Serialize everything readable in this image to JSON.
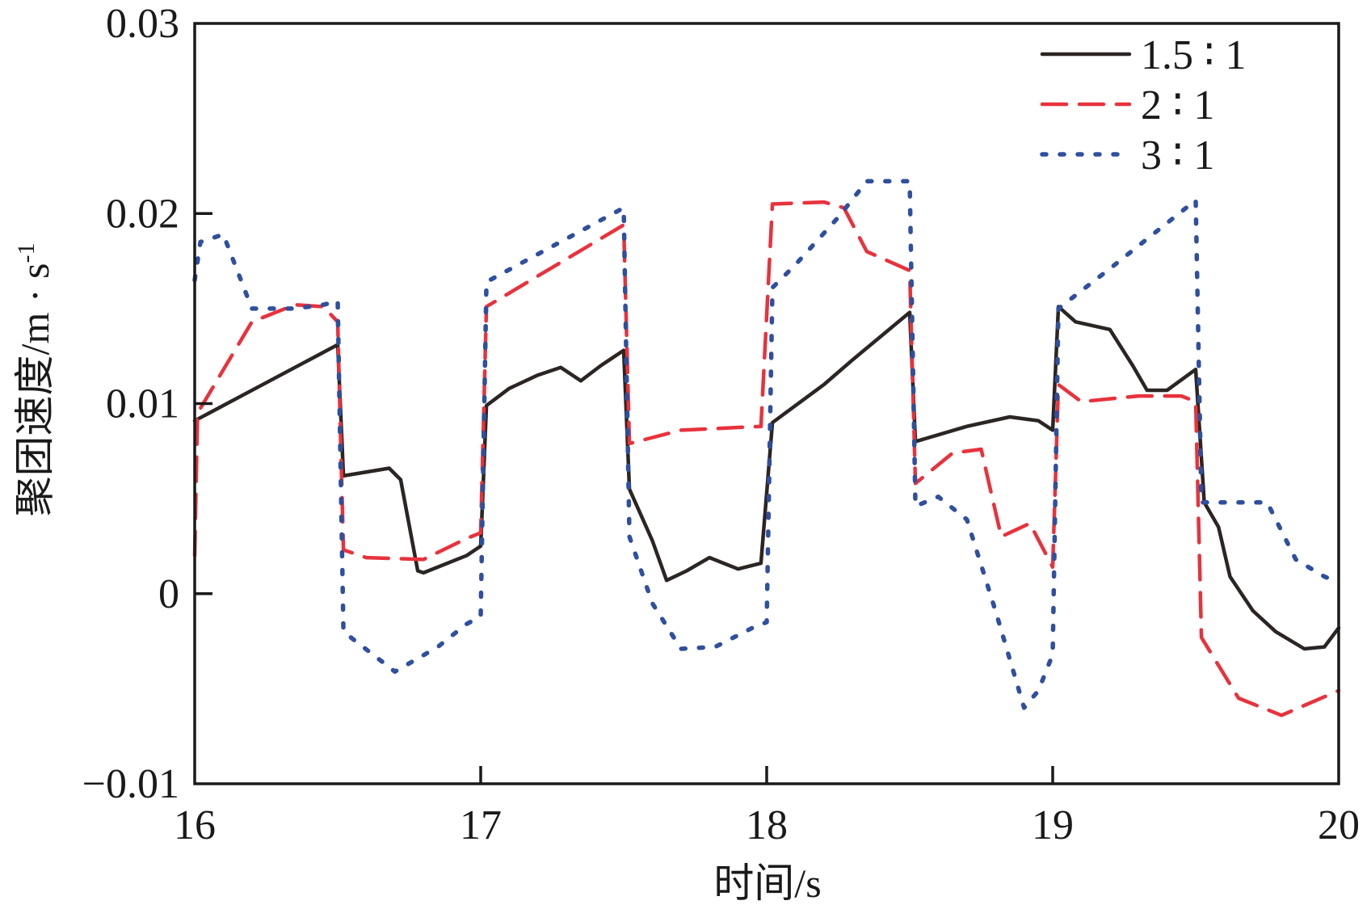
{
  "chart_data": {
    "type": "line",
    "title": "",
    "xlabel": "时间/s",
    "ylabel": "聚团速度/m · s",
    "ylabel_sup": "-1",
    "xlim": [
      16,
      20
    ],
    "ylim": [
      -0.01,
      0.03
    ],
    "xticks": [
      16,
      17,
      18,
      19,
      20
    ],
    "xtick_labels": [
      "16",
      "17",
      "18",
      "19",
      "20"
    ],
    "yticks": [
      -0.01,
      0,
      0.01,
      0.02,
      0.03
    ],
    "ytick_labels": [
      "−0.01",
      "0",
      "0.01",
      "0.02",
      "0.03"
    ],
    "grid": false,
    "legend_position": "top-right",
    "series": [
      {
        "name": "1.5 ∶ 1",
        "color": "#2b2523",
        "style": "solid",
        "x": [
          16.0,
          16.5,
          16.52,
          16.68,
          16.72,
          16.78,
          16.8,
          16.95,
          17.0,
          17.02,
          17.1,
          17.2,
          17.28,
          17.35,
          17.42,
          17.5,
          17.52,
          17.6,
          17.65,
          17.72,
          17.8,
          17.9,
          17.98,
          18.02,
          18.2,
          18.3,
          18.5,
          18.52,
          18.7,
          18.85,
          18.95,
          19.0,
          19.02,
          19.08,
          19.2,
          19.28,
          19.33,
          19.4,
          19.5,
          19.53,
          19.58,
          19.62,
          19.7,
          19.78,
          19.88,
          19.95,
          20.0
        ],
        "y": [
          0.0091,
          0.0131,
          0.0062,
          0.0066,
          0.006,
          0.0012,
          0.0011,
          0.002,
          0.0025,
          0.0099,
          0.0108,
          0.0115,
          0.0119,
          0.0112,
          0.012,
          0.0128,
          0.0055,
          0.0028,
          0.0007,
          0.0012,
          0.0019,
          0.0013,
          0.0016,
          0.009,
          0.011,
          0.0123,
          0.0148,
          0.008,
          0.0088,
          0.0093,
          0.0091,
          0.0086,
          0.0151,
          0.0143,
          0.0139,
          0.012,
          0.0107,
          0.0107,
          0.0118,
          0.0048,
          0.0035,
          0.0009,
          -0.0009,
          -0.002,
          -0.0029,
          -0.0028,
          -0.0018
        ]
      },
      {
        "name": "2 ∶ 1",
        "color": "#e8323c",
        "style": "dashed",
        "x": [
          16.0,
          16.01,
          16.2,
          16.35,
          16.45,
          16.5,
          16.52,
          16.6,
          16.8,
          16.95,
          17.0,
          17.02,
          17.5,
          17.52,
          17.7,
          17.98,
          18.02,
          18.2,
          18.27,
          18.35,
          18.5,
          18.52,
          18.65,
          18.75,
          18.82,
          18.92,
          19.0,
          19.02,
          19.1,
          19.3,
          19.45,
          19.5,
          19.52,
          19.65,
          19.8,
          20.0
        ],
        "y": [
          0.002,
          0.0095,
          0.0143,
          0.0152,
          0.0151,
          0.0143,
          0.0023,
          0.0019,
          0.0018,
          0.0029,
          0.0032,
          0.0151,
          0.0194,
          0.0079,
          0.0086,
          0.0088,
          0.0205,
          0.0206,
          0.0203,
          0.018,
          0.017,
          0.0058,
          0.0074,
          0.0076,
          0.003,
          0.0037,
          0.0014,
          0.011,
          0.0101,
          0.0104,
          0.0104,
          0.0101,
          -0.0023,
          -0.0055,
          -0.0064,
          -0.0051
        ]
      },
      {
        "name": "3 ∶ 1",
        "color": "#2f4f9f",
        "style": "dotted",
        "x": [
          16.0,
          16.02,
          16.1,
          16.2,
          16.35,
          16.45,
          16.5,
          16.52,
          16.7,
          16.85,
          16.95,
          17.0,
          17.02,
          17.5,
          17.52,
          17.6,
          17.7,
          17.82,
          17.95,
          18.0,
          18.02,
          18.1,
          18.25,
          18.35,
          18.5,
          18.52,
          18.6,
          18.7,
          18.8,
          18.9,
          18.95,
          19.0,
          19.02,
          19.2,
          19.35,
          19.5,
          19.52,
          19.65,
          19.75,
          19.85,
          19.95,
          20.0
        ],
        "y": [
          0.0165,
          0.0185,
          0.0189,
          0.015,
          0.015,
          0.0152,
          0.0154,
          -0.002,
          -0.0041,
          -0.0028,
          -0.0016,
          -0.0012,
          0.0164,
          0.0203,
          0.003,
          -0.0005,
          -0.0029,
          -0.0028,
          -0.0018,
          -0.0015,
          0.0161,
          0.0173,
          0.0198,
          0.0217,
          0.0217,
          0.0046,
          0.0051,
          0.0039,
          -0.0009,
          -0.006,
          -0.0051,
          -0.0032,
          0.015,
          0.0171,
          0.0189,
          0.0207,
          0.0048,
          0.0048,
          0.0048,
          0.0018,
          0.0009,
          0.0006
        ]
      }
    ]
  }
}
